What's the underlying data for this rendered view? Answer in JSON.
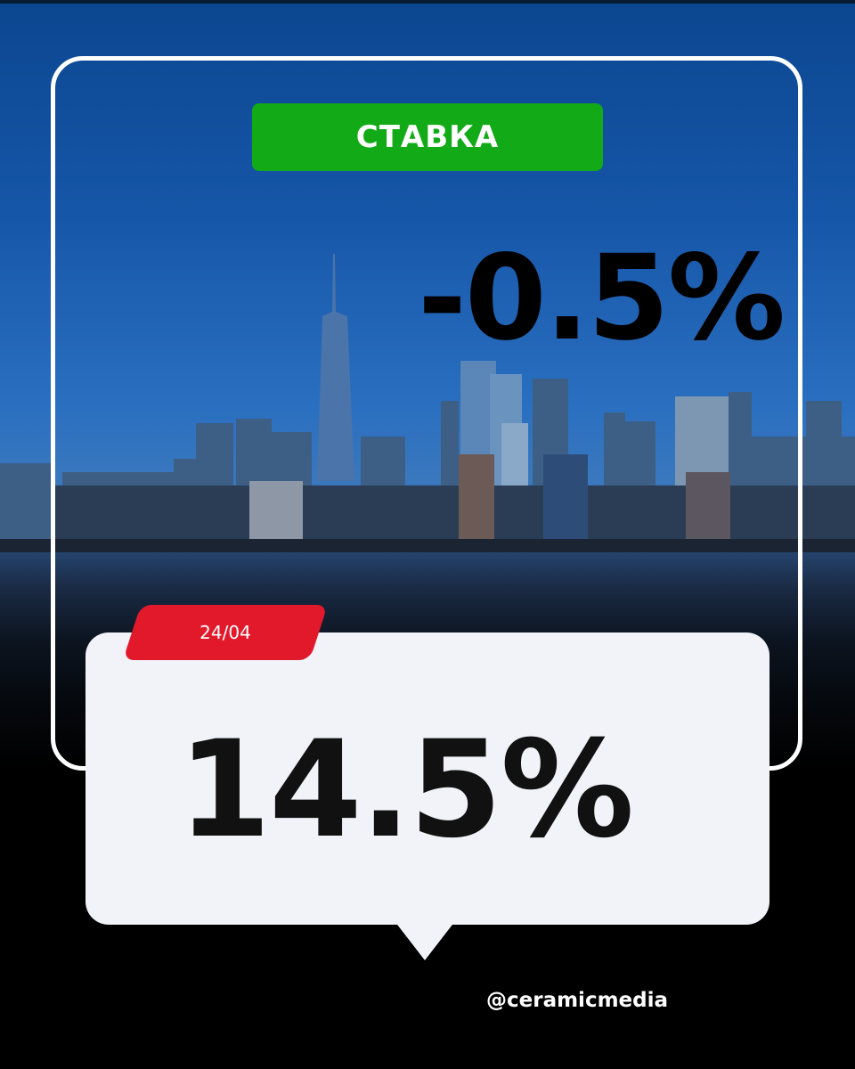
{
  "tag": {
    "label": "СТАВКА",
    "color": "#12aa17"
  },
  "change": "-0.5%",
  "date": {
    "label": "24/04",
    "color": "#e2182b"
  },
  "rate": "14.5%",
  "handle": "@ceramicmedia"
}
